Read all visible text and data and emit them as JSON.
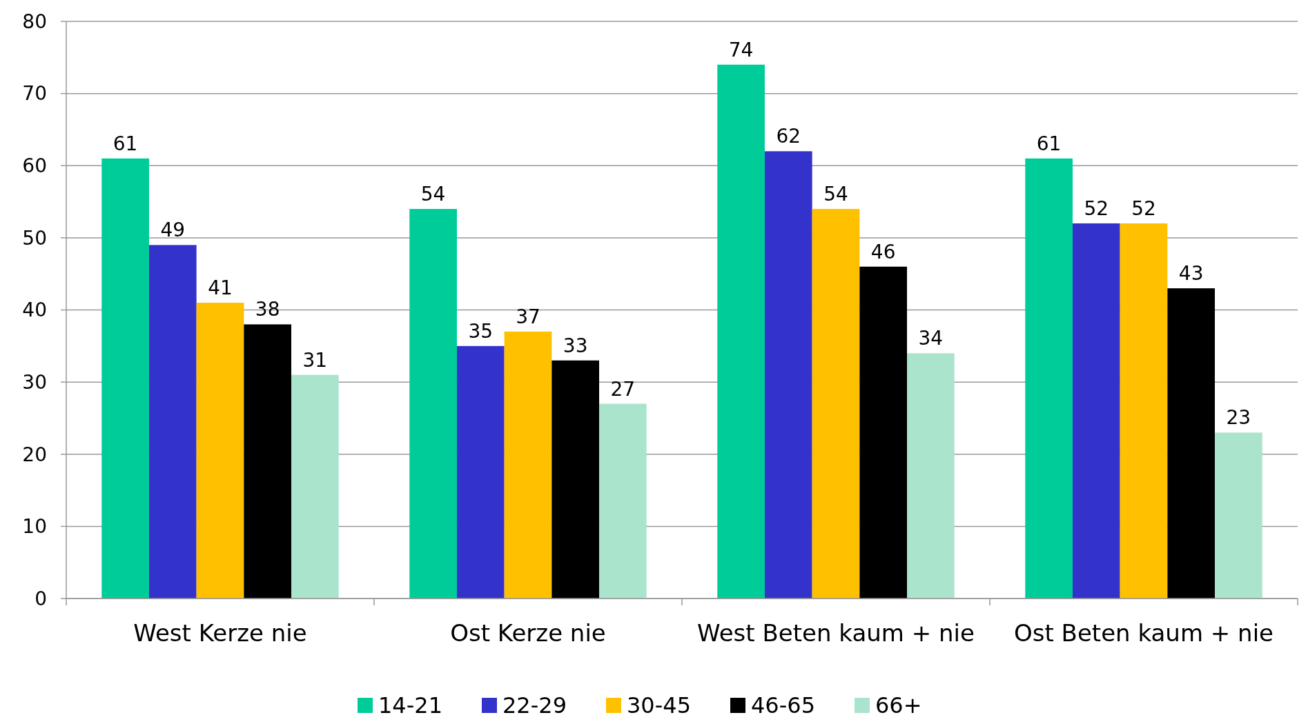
{
  "chart_data": {
    "type": "bar",
    "categories": [
      "West Kerze nie",
      "Ost Kerze nie",
      "West Beten kaum + nie",
      "Ost Beten kaum + nie"
    ],
    "series": [
      {
        "name": "14-21",
        "color": "#00cc99",
        "values": [
          61,
          54,
          74,
          61
        ]
      },
      {
        "name": "22-29",
        "color": "#3333cc",
        "values": [
          49,
          35,
          62,
          52
        ]
      },
      {
        "name": "30-45",
        "color": "#ffc000",
        "values": [
          41,
          37,
          54,
          52
        ]
      },
      {
        "name": "46-65",
        "color": "#000000",
        "values": [
          38,
          33,
          46,
          43
        ]
      },
      {
        "name": "66+",
        "color": "#aae4cc",
        "values": [
          31,
          27,
          34,
          23
        ]
      }
    ],
    "ylim": [
      0,
      80
    ],
    "yticks": [
      0,
      10,
      20,
      30,
      40,
      50,
      60,
      70,
      80
    ],
    "grid": "y",
    "legend": "bottom",
    "data_labels": true
  }
}
